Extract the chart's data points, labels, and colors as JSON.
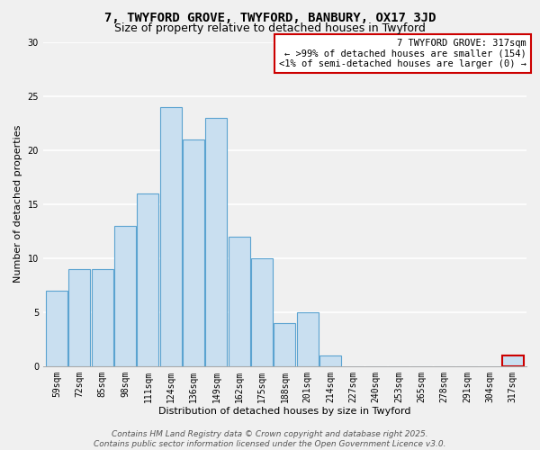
{
  "title": "7, TWYFORD GROVE, TWYFORD, BANBURY, OX17 3JD",
  "subtitle": "Size of property relative to detached houses in Twyford",
  "xlabel": "Distribution of detached houses by size in Twyford",
  "ylabel": "Number of detached properties",
  "categories": [
    "59sqm",
    "72sqm",
    "85sqm",
    "98sqm",
    "111sqm",
    "124sqm",
    "136sqm",
    "149sqm",
    "162sqm",
    "175sqm",
    "188sqm",
    "201sqm",
    "214sqm",
    "227sqm",
    "240sqm",
    "253sqm",
    "265sqm",
    "278sqm",
    "291sqm",
    "304sqm",
    "317sqm"
  ],
  "values": [
    7,
    9,
    9,
    13,
    16,
    24,
    21,
    23,
    12,
    10,
    4,
    5,
    1,
    0,
    0,
    0,
    0,
    0,
    0,
    0,
    1
  ],
  "bar_color": "#c9dff0",
  "bar_edge_color": "#5ba3d0",
  "highlight_bar_index": 20,
  "highlight_bar_edge_color": "#cc0000",
  "annotation_text": "7 TWYFORD GROVE: 317sqm\n← >99% of detached houses are smaller (154)\n<1% of semi-detached houses are larger (0) →",
  "annotation_box_color": "#ffffff",
  "annotation_box_edge_color": "#cc0000",
  "ylim": [
    0,
    30
  ],
  "yticks": [
    0,
    5,
    10,
    15,
    20,
    25,
    30
  ],
  "footer_line1": "Contains HM Land Registry data © Crown copyright and database right 2025.",
  "footer_line2": "Contains public sector information licensed under the Open Government Licence v3.0.",
  "bg_color": "#f0f0f0",
  "grid_color": "#ffffff",
  "title_fontsize": 10,
  "subtitle_fontsize": 9,
  "axis_label_fontsize": 8,
  "tick_fontsize": 7,
  "annotation_fontsize": 7.5,
  "footer_fontsize": 6.5
}
